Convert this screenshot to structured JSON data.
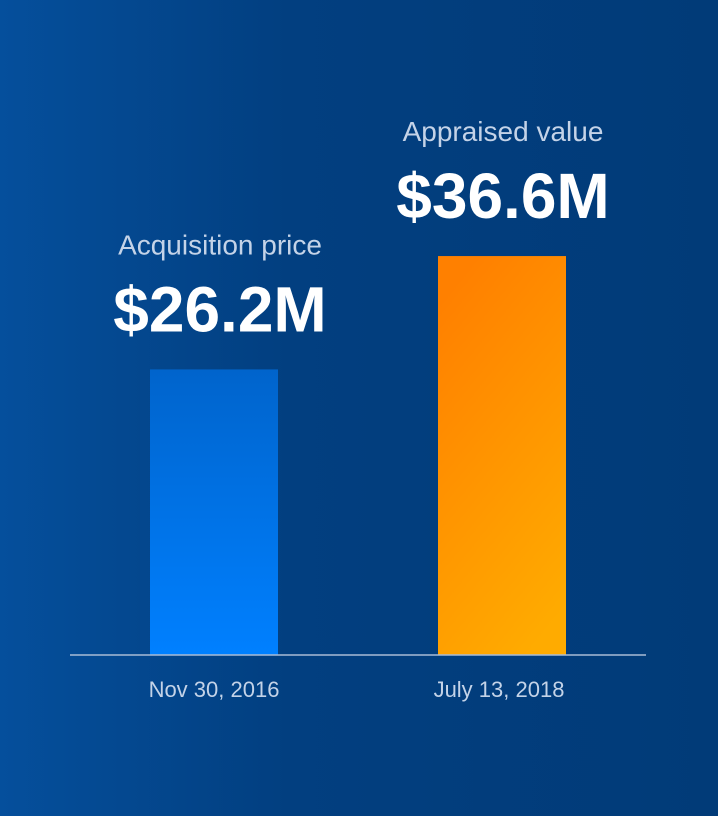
{
  "chart_data": {
    "type": "bar",
    "title": "",
    "xlabel": "",
    "ylabel": "",
    "ylim": [
      0,
      60
    ],
    "grid": false,
    "categories": [
      "Nov 30, 2016",
      "July 13, 2018"
    ],
    "values": [
      26.2,
      36.6
    ],
    "series_labels": [
      "Acquisition price",
      "Appraised value"
    ],
    "data_labels": [
      "$26.2M",
      "$36.6M"
    ],
    "unit": "$M",
    "colors": {
      "bar1_top": "#0064cc",
      "bar1_bottom": "#0080ff",
      "bar2_top": "#ff8000",
      "bar2_bottom": "#ffab00",
      "axis": "#a9bcd6",
      "label": "#c4d3e8",
      "value": "#ffffff"
    }
  }
}
